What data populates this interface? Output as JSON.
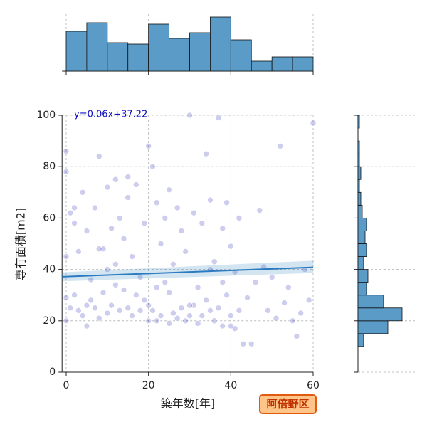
{
  "chart_data": {
    "type": "scatter",
    "title": "阿倍野区",
    "xlabel": "築年数[年]",
    "ylabel": "専有面積[m2]",
    "annotation": "y=0.06x+37.22",
    "color": "#1a1ab0",
    "xlim": [
      -1,
      60
    ],
    "ylim": [
      0,
      100
    ],
    "xticks": [
      0,
      20,
      40,
      60
    ],
    "yticks": [
      0,
      20,
      40,
      60,
      80,
      100
    ],
    "grid": true,
    "x": [
      0,
      0,
      0,
      0,
      0,
      1,
      1,
      2,
      2,
      3,
      3,
      4,
      4,
      5,
      5,
      6,
      6,
      7,
      7,
      8,
      8,
      9,
      9,
      10,
      10,
      11,
      11,
      12,
      12,
      13,
      13,
      14,
      14,
      15,
      15,
      16,
      16,
      17,
      17,
      18,
      18,
      19,
      19,
      20,
      20,
      21,
      21,
      22,
      22,
      23,
      23,
      24,
      24,
      25,
      25,
      26,
      26,
      27,
      27,
      28,
      28,
      29,
      29,
      30,
      30,
      31,
      31,
      32,
      32,
      33,
      33,
      34,
      34,
      35,
      35,
      36,
      36,
      37,
      37,
      38,
      38,
      39,
      39,
      40,
      40,
      41,
      41,
      42,
      42,
      43,
      44,
      45,
      46,
      47,
      48,
      49,
      50,
      51,
      52,
      53,
      54,
      55,
      56,
      57,
      58,
      59,
      60,
      2,
      5,
      8,
      10,
      15,
      20,
      25,
      30,
      35,
      38,
      40,
      12,
      22
    ],
    "y": [
      29,
      86,
      78,
      45,
      20,
      62,
      25,
      58,
      30,
      24,
      47,
      22,
      70,
      26,
      55,
      28,
      36,
      25,
      64,
      84,
      21,
      31,
      48,
      23,
      72,
      26,
      56,
      42,
      75,
      24,
      60,
      32,
      52,
      25,
      68,
      22,
      45,
      30,
      73,
      24,
      37,
      28,
      58,
      20,
      88,
      80,
      24,
      66,
      33,
      22,
      50,
      35,
      60,
      19,
      71,
      23,
      42,
      21,
      64,
      25,
      55,
      20,
      47,
      100,
      22,
      62,
      26,
      33,
      19,
      58,
      22,
      85,
      28,
      67,
      24,
      43,
      20,
      99,
      25,
      56,
      18,
      30,
      66,
      22,
      49,
      17,
      39,
      24,
      60,
      11,
      29,
      11,
      35,
      63,
      41,
      24,
      37,
      21,
      88,
      27,
      33,
      20,
      14,
      23,
      40,
      28,
      97,
      64,
      18,
      48,
      40,
      76,
      26,
      31,
      26,
      40,
      35,
      18,
      34,
      20
    ],
    "fit": {
      "color": "#2a7bbf",
      "x": [
        -1,
        60
      ],
      "y": [
        37.16,
        40.82
      ],
      "ci_low": [
        35.4,
        38.6
      ],
      "ci_high": [
        38.9,
        43.4
      ]
    },
    "x_hist": {
      "color": "#5b9bc8",
      "bins": [
        0,
        5,
        10,
        15,
        20,
        25,
        30,
        35,
        40,
        45,
        50,
        55,
        60
      ],
      "counts": [
        28,
        34,
        20,
        19,
        33,
        23,
        27,
        38,
        22,
        7,
        10,
        10
      ],
      "lim": [
        0,
        40
      ]
    },
    "y_hist": {
      "color": "#5b9bc8",
      "bins": [
        10,
        15,
        20,
        25,
        30,
        35,
        40,
        45,
        50,
        55,
        60,
        65,
        70,
        75,
        80,
        85,
        90,
        95,
        100
      ],
      "counts": [
        4,
        21,
        31,
        18,
        6,
        7,
        4,
        6,
        5,
        6,
        3,
        2,
        1,
        2,
        1,
        1,
        0,
        1
      ],
      "lim": [
        0,
        40
      ]
    }
  }
}
